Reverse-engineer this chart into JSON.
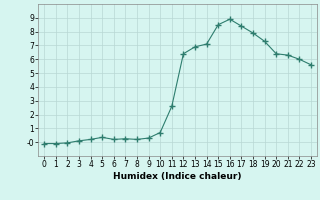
{
  "x": [
    0,
    1,
    2,
    3,
    4,
    5,
    6,
    7,
    8,
    9,
    10,
    11,
    12,
    13,
    14,
    15,
    16,
    17,
    18,
    19,
    20,
    21,
    22,
    23
  ],
  "y": [
    -0.1,
    -0.1,
    -0.05,
    0.1,
    0.2,
    0.35,
    0.2,
    0.25,
    0.2,
    0.3,
    0.7,
    2.6,
    6.4,
    6.9,
    7.1,
    8.5,
    8.9,
    8.4,
    7.9,
    7.3,
    6.4,
    6.3,
    6.0,
    5.6
  ],
  "line_color": "#2e7d6e",
  "marker": "+",
  "marker_size": 4,
  "bg_color": "#d6f5f0",
  "grid_color": "#b8d8d4",
  "xlabel": "Humidex (Indice chaleur)",
  "xlim": [
    -0.5,
    23.5
  ],
  "ylim": [
    -1.0,
    10.0
  ],
  "yticks": [
    0,
    1,
    2,
    3,
    4,
    5,
    6,
    7,
    8,
    9
  ],
  "xticks": [
    0,
    1,
    2,
    3,
    4,
    5,
    6,
    7,
    8,
    9,
    10,
    11,
    12,
    13,
    14,
    15,
    16,
    17,
    18,
    19,
    20,
    21,
    22,
    23
  ],
  "xtick_labels": [
    "0",
    "1",
    "2",
    "3",
    "4",
    "5",
    "6",
    "7",
    "8",
    "9",
    "10",
    "11",
    "12",
    "13",
    "14",
    "15",
    "16",
    "17",
    "18",
    "19",
    "20",
    "21",
    "22",
    "23"
  ],
  "ytick_labels": [
    "-0",
    "1",
    "2",
    "3",
    "4",
    "5",
    "6",
    "7",
    "8",
    "9"
  ],
  "xlabel_fontsize": 6.5,
  "tick_fontsize": 5.5
}
